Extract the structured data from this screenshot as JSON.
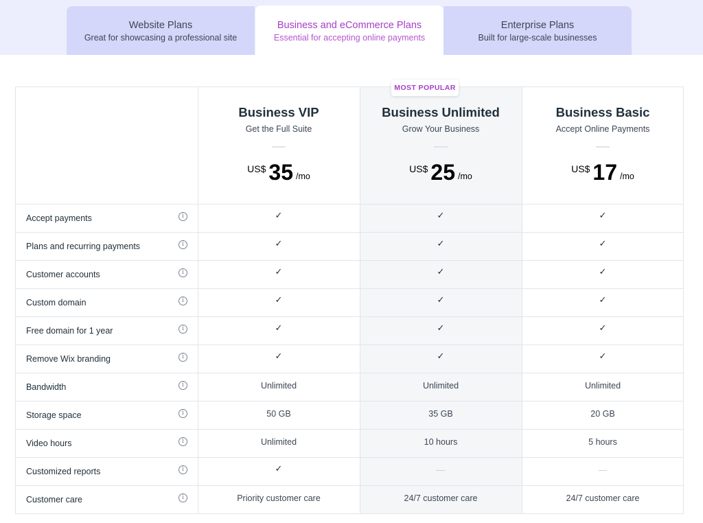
{
  "tabs": [
    {
      "title": "Website Plans",
      "subtitle": "Great for showcasing a professional site",
      "active": false
    },
    {
      "title": "Business and eCommerce Plans",
      "subtitle": "Essential for accepting online payments",
      "active": true
    },
    {
      "title": "Enterprise Plans",
      "subtitle": "Built for large-scale businesses",
      "active": false
    }
  ],
  "badge": "MOST POPULAR",
  "plans": [
    {
      "name": "Business VIP",
      "tagline": "Get the Full Suite",
      "currency": "US$",
      "price": "35",
      "period": "/mo"
    },
    {
      "name": "Business Unlimited",
      "tagline": "Grow Your Business",
      "currency": "US$",
      "price": "25",
      "period": "/mo"
    },
    {
      "name": "Business Basic",
      "tagline": "Accept Online Payments",
      "currency": "US$",
      "price": "17",
      "period": "/mo"
    }
  ],
  "info_glyph": "i",
  "check_glyph": "✓",
  "dash_glyph": "—",
  "features": [
    {
      "label": "Accept payments",
      "values": [
        "✓",
        "✓",
        "✓"
      ]
    },
    {
      "label": "Plans and recurring payments",
      "values": [
        "✓",
        "✓",
        "✓"
      ]
    },
    {
      "label": "Customer accounts",
      "values": [
        "✓",
        "✓",
        "✓"
      ]
    },
    {
      "label": "Custom domain",
      "values": [
        "✓",
        "✓",
        "✓"
      ]
    },
    {
      "label": "Free domain for 1 year",
      "values": [
        "✓",
        "✓",
        "✓"
      ]
    },
    {
      "label": "Remove Wix branding",
      "values": [
        "✓",
        "✓",
        "✓"
      ]
    },
    {
      "label": "Bandwidth",
      "values": [
        "Unlimited",
        "Unlimited",
        "Unlimited"
      ]
    },
    {
      "label": "Storage space",
      "values": [
        "50 GB",
        "35 GB",
        "20 GB"
      ]
    },
    {
      "label": "Video hours",
      "values": [
        "Unlimited",
        "10 hours",
        "5 hours"
      ]
    },
    {
      "label": "Customized reports",
      "values": [
        "✓",
        "—",
        "—"
      ]
    },
    {
      "label": "Customer care",
      "values": [
        "Priority customer care",
        "24/7 customer care",
        "24/7 customer care"
      ]
    }
  ],
  "colors": {
    "accent": "#a53ec6",
    "tab_bg": "#d4d7fa",
    "tabbar_bg": "#eceefd",
    "highlight_col": "#f4f6f8"
  }
}
